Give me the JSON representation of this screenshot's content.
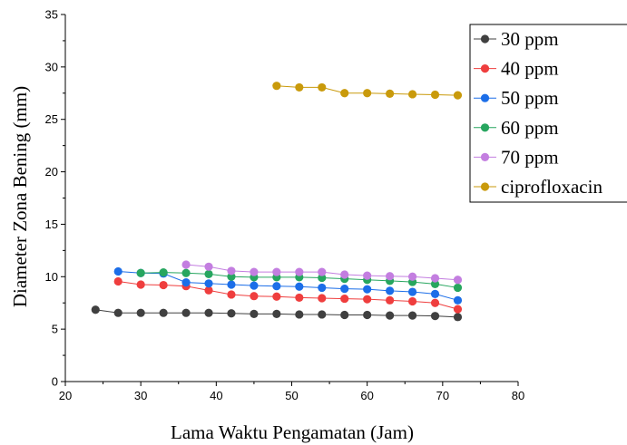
{
  "chart_data": {
    "type": "line",
    "title": "",
    "xlabel": "Lama Waktu Pengamatan (Jam)",
    "ylabel": "Diameter Zona Bening (mm)",
    "xlim": [
      20,
      80
    ],
    "ylim": [
      0,
      35
    ],
    "xticks": [
      20,
      30,
      40,
      50,
      60,
      70,
      80
    ],
    "yticks": [
      0,
      5,
      10,
      15,
      20,
      25,
      30,
      35
    ],
    "grid": false,
    "legend_position": "top-right",
    "series": [
      {
        "name": "30 ppm",
        "color": "#404040",
        "x": [
          24,
          27,
          30,
          33,
          36,
          39,
          42,
          45,
          48,
          51,
          54,
          57,
          60,
          63,
          66,
          69,
          72
        ],
        "y": [
          6.85,
          6.55,
          6.55,
          6.55,
          6.55,
          6.55,
          6.5,
          6.45,
          6.45,
          6.4,
          6.4,
          6.35,
          6.35,
          6.3,
          6.3,
          6.25,
          6.15
        ]
      },
      {
        "name": "40 ppm",
        "color": "#ef3e3e",
        "x": [
          27,
          30,
          33,
          36,
          39,
          42,
          45,
          48,
          51,
          54,
          57,
          60,
          63,
          66,
          69,
          72
        ],
        "y": [
          9.55,
          9.25,
          9.2,
          9.1,
          8.7,
          8.3,
          8.15,
          8.1,
          8.0,
          7.95,
          7.9,
          7.85,
          7.75,
          7.65,
          7.5,
          6.9
        ]
      },
      {
        "name": "50 ppm",
        "color": "#1c6ee8",
        "x": [
          27,
          30,
          33,
          36,
          39,
          42,
          45,
          48,
          51,
          54,
          57,
          60,
          63,
          66,
          69,
          72
        ],
        "y": [
          10.5,
          10.35,
          10.3,
          9.45,
          9.35,
          9.25,
          9.15,
          9.1,
          9.05,
          8.95,
          8.85,
          8.8,
          8.65,
          8.55,
          8.35,
          7.75
        ]
      },
      {
        "name": "60 ppm",
        "color": "#27a65f",
        "x": [
          30,
          33,
          36,
          39,
          42,
          45,
          48,
          51,
          54,
          57,
          60,
          63,
          66,
          69,
          72
        ],
        "y": [
          10.35,
          10.4,
          10.35,
          10.25,
          10.0,
          9.95,
          9.95,
          9.95,
          9.9,
          9.8,
          9.7,
          9.6,
          9.5,
          9.3,
          8.95
        ]
      },
      {
        "name": "70 ppm",
        "color": "#c37ee0",
        "x": [
          36,
          39,
          42,
          45,
          48,
          51,
          54,
          57,
          60,
          63,
          66,
          69,
          72
        ],
        "y": [
          11.15,
          10.95,
          10.55,
          10.45,
          10.45,
          10.45,
          10.45,
          10.2,
          10.1,
          10.05,
          10.0,
          9.85,
          9.7
        ]
      },
      {
        "name": "ciprofloxacin",
        "color": "#c99a0b",
        "x": [
          48,
          51,
          54,
          57,
          60,
          63,
          66,
          69,
          72
        ],
        "y": [
          28.2,
          28.05,
          28.05,
          27.5,
          27.5,
          27.45,
          27.4,
          27.35,
          27.3
        ]
      }
    ]
  }
}
